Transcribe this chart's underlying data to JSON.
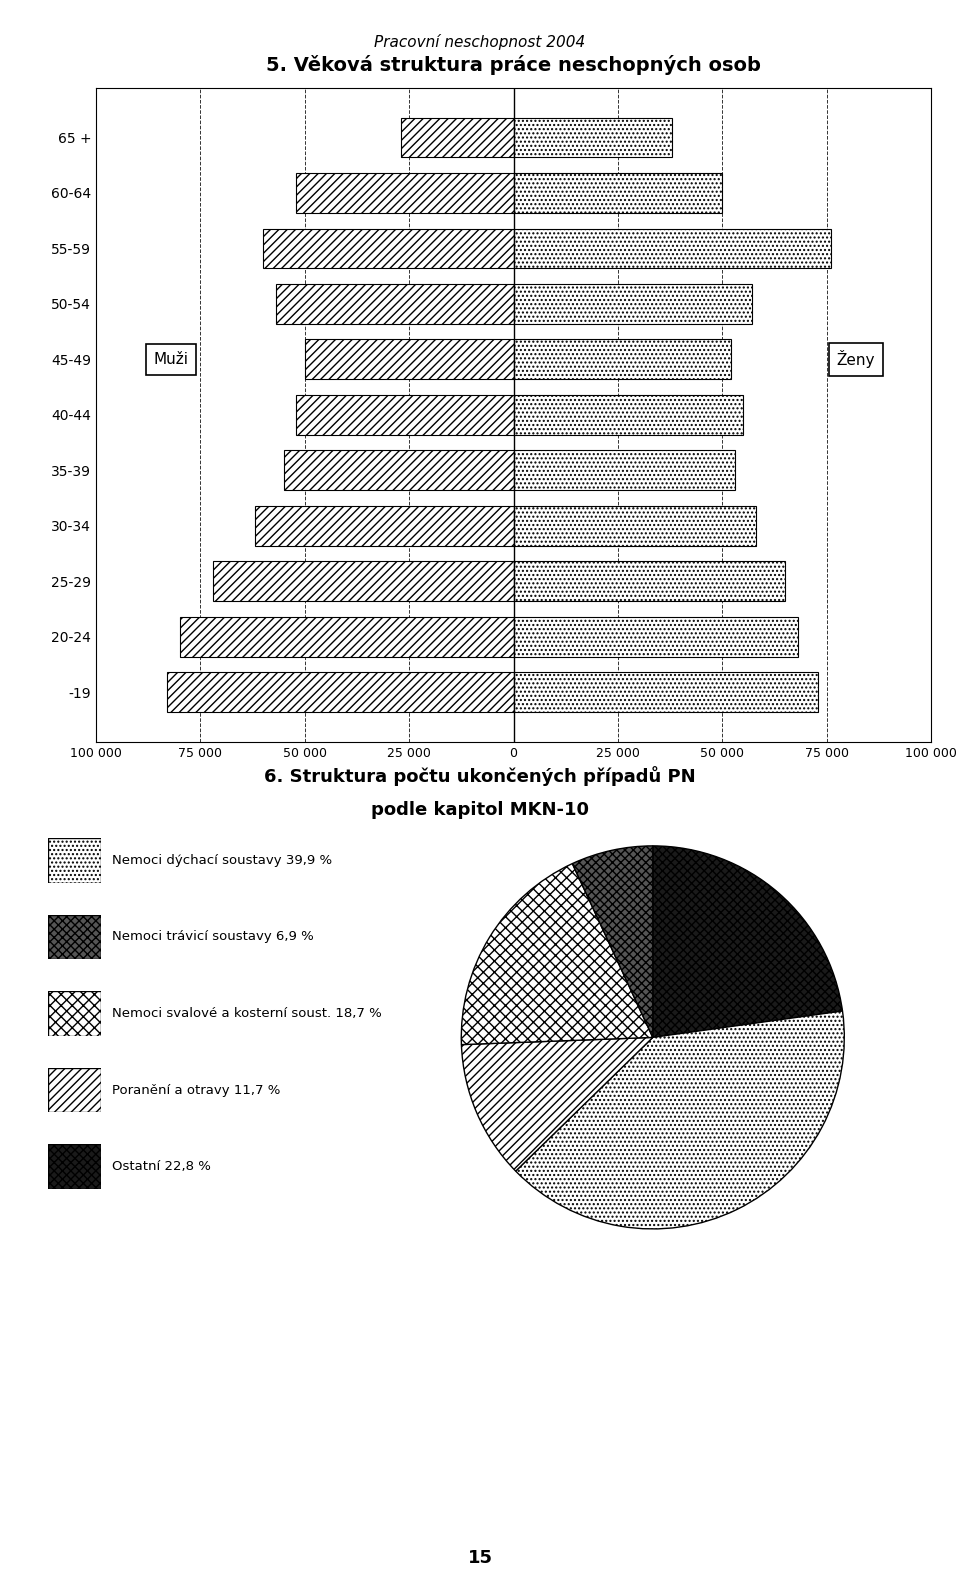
{
  "page_title": "Pracovní neschopnost 2004",
  "chart1_title": "5. Věková struktura práce neschopných osob",
  "chart2_title": "6. Struktura počtu ukončených případů PN\npodle kapitol MKN-10",
  "age_groups": [
    "-19",
    "20-24",
    "25-29",
    "30-34",
    "35-39",
    "40-44",
    "45-49",
    "50-54",
    "55-59",
    "60-64",
    "65 +"
  ],
  "men_values": [
    83000,
    80000,
    72000,
    62000,
    55000,
    52000,
    50000,
    57000,
    60000,
    52000,
    27000
  ],
  "women_values": [
    73000,
    68000,
    65000,
    58000,
    53000,
    55000,
    52000,
    57000,
    76000,
    50000,
    38000
  ],
  "xlim": [
    -100000,
    100000
  ],
  "xticks": [
    -100000,
    -75000,
    -50000,
    -25000,
    0,
    25000,
    50000,
    75000,
    100000
  ],
  "xtick_labels": [
    "100 000",
    "75 000",
    "50 000",
    "25 000",
    "0",
    "25 000",
    "50 000",
    "75 000",
    "100 000"
  ],
  "men_label": "Muži",
  "women_label": "Ženy",
  "pie_values": [
    39.9,
    6.9,
    18.7,
    11.7,
    22.8
  ],
  "pie_labels": [
    "Nemoci dýchací soustavy 39,9 %",
    "Nemoci trávicí soustavy 6,9 %",
    "Nemoci svalové a kosterní soust. 18,7 %",
    "Poranění a otravy 11,7 %",
    "Ostatní 22,8 %"
  ],
  "page_number": "15",
  "background_color": "#ffffff"
}
